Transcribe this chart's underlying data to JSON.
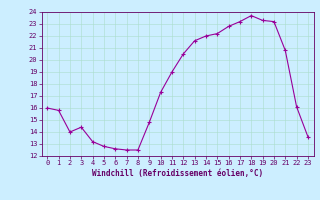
{
  "x": [
    0,
    1,
    2,
    3,
    4,
    5,
    6,
    7,
    8,
    9,
    10,
    11,
    12,
    13,
    14,
    15,
    16,
    17,
    18,
    19,
    20,
    21,
    22,
    23
  ],
  "y": [
    16.0,
    15.8,
    14.0,
    14.4,
    13.2,
    12.8,
    12.6,
    12.5,
    12.5,
    14.8,
    17.3,
    19.0,
    20.5,
    21.6,
    22.0,
    22.2,
    22.8,
    23.2,
    23.7,
    23.3,
    23.2,
    20.8,
    16.1,
    13.6
  ],
  "line_color": "#990099",
  "marker": "+",
  "marker_size": 3,
  "bg_color": "#cceeff",
  "grid_color": "#aaddcc",
  "xlabel": "Windchill (Refroidissement éolien,°C)",
  "ylim": [
    12,
    24
  ],
  "xlim": [
    -0.5,
    23.5
  ],
  "yticks": [
    12,
    13,
    14,
    15,
    16,
    17,
    18,
    19,
    20,
    21,
    22,
    23,
    24
  ],
  "xticks": [
    0,
    1,
    2,
    3,
    4,
    5,
    6,
    7,
    8,
    9,
    10,
    11,
    12,
    13,
    14,
    15,
    16,
    17,
    18,
    19,
    20,
    21,
    22,
    23
  ],
  "axis_color": "#660066",
  "tick_color": "#660066",
  "label_color": "#660066",
  "tick_fontsize": 5,
  "xlabel_fontsize": 5.5,
  "linewidth": 0.8,
  "markeredgewidth": 0.8
}
